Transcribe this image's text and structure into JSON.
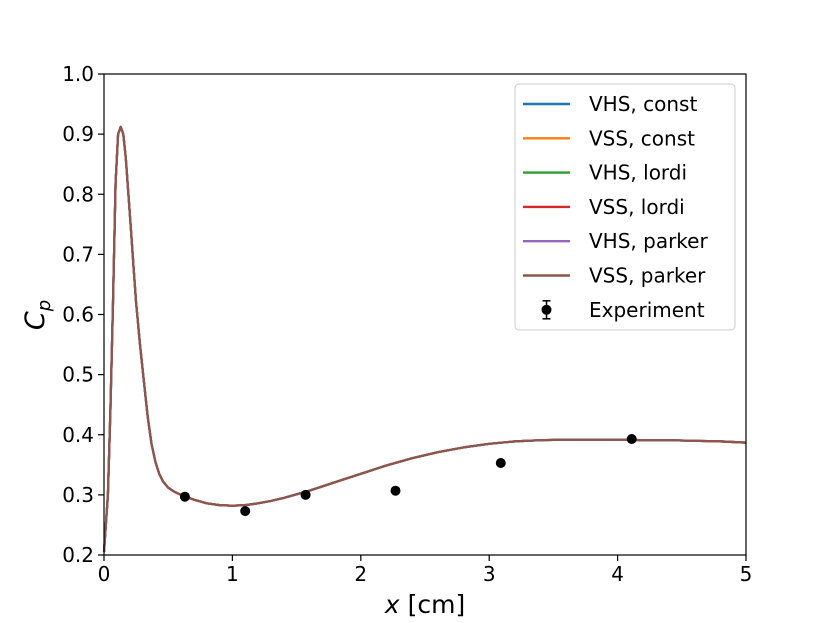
{
  "chart_data": {
    "type": "line",
    "title": "",
    "xlabel": "x [cm]",
    "xlabel_var": "x",
    "xlabel_unit": "[cm]",
    "ylabel": "C_p",
    "ylabel_main": "C",
    "ylabel_sub": "p",
    "xlim": [
      0,
      5
    ],
    "ylim": [
      0.2,
      1.0
    ],
    "xticks": [
      0,
      1,
      2,
      3,
      4,
      5
    ],
    "xtick_labels": [
      "0",
      "1",
      "2",
      "3",
      "4",
      "5"
    ],
    "yticks": [
      0.2,
      0.3,
      0.4,
      0.5,
      0.6,
      0.7,
      0.8,
      0.9,
      1.0
    ],
    "ytick_labels": [
      "0.2",
      "0.3",
      "0.4",
      "0.5",
      "0.6",
      "0.7",
      "0.8",
      "0.9",
      "1.0"
    ],
    "grid": false,
    "legend_position": "top-right",
    "curve_x": [
      0.0,
      0.03,
      0.05,
      0.07,
      0.09,
      0.11,
      0.13,
      0.15,
      0.17,
      0.19,
      0.21,
      0.23,
      0.25,
      0.28,
      0.31,
      0.34,
      0.37,
      0.4,
      0.43,
      0.46,
      0.5,
      0.55,
      0.6,
      0.65,
      0.7,
      0.8,
      0.9,
      1.0,
      1.1,
      1.2,
      1.3,
      1.4,
      1.5,
      1.6,
      1.8,
      2.0,
      2.2,
      2.4,
      2.6,
      2.8,
      3.0,
      3.2,
      3.4,
      3.6,
      3.8,
      4.0,
      4.2,
      4.4,
      4.6,
      4.8,
      5.0
    ],
    "curve_y": [
      0.205,
      0.3,
      0.44,
      0.62,
      0.82,
      0.9,
      0.912,
      0.9,
      0.86,
      0.8,
      0.74,
      0.68,
      0.62,
      0.55,
      0.49,
      0.43,
      0.385,
      0.355,
      0.335,
      0.322,
      0.312,
      0.305,
      0.3,
      0.296,
      0.292,
      0.286,
      0.283,
      0.282,
      0.283,
      0.286,
      0.29,
      0.295,
      0.301,
      0.307,
      0.321,
      0.335,
      0.349,
      0.361,
      0.371,
      0.379,
      0.385,
      0.389,
      0.391,
      0.392,
      0.392,
      0.392,
      0.391,
      0.391,
      0.39,
      0.389,
      0.387
    ],
    "series": [
      {
        "name": "VHS, const",
        "color": "#1f77b4"
      },
      {
        "name": "VSS, const",
        "color": "#ff7f0e"
      },
      {
        "name": "VHS, lordi",
        "color": "#2ca02c"
      },
      {
        "name": "VSS, lordi",
        "color": "#d62728"
      },
      {
        "name": "VHS, parker",
        "color": "#9467bd"
      },
      {
        "name": "VSS, parker",
        "color": "#8c564b"
      }
    ],
    "experiment": {
      "name": "Experiment",
      "color": "#000000",
      "x": [
        0.63,
        1.1,
        1.57,
        2.27,
        3.09,
        4.11
      ],
      "y": [
        0.297,
        0.273,
        0.3,
        0.307,
        0.353,
        0.393
      ]
    }
  }
}
